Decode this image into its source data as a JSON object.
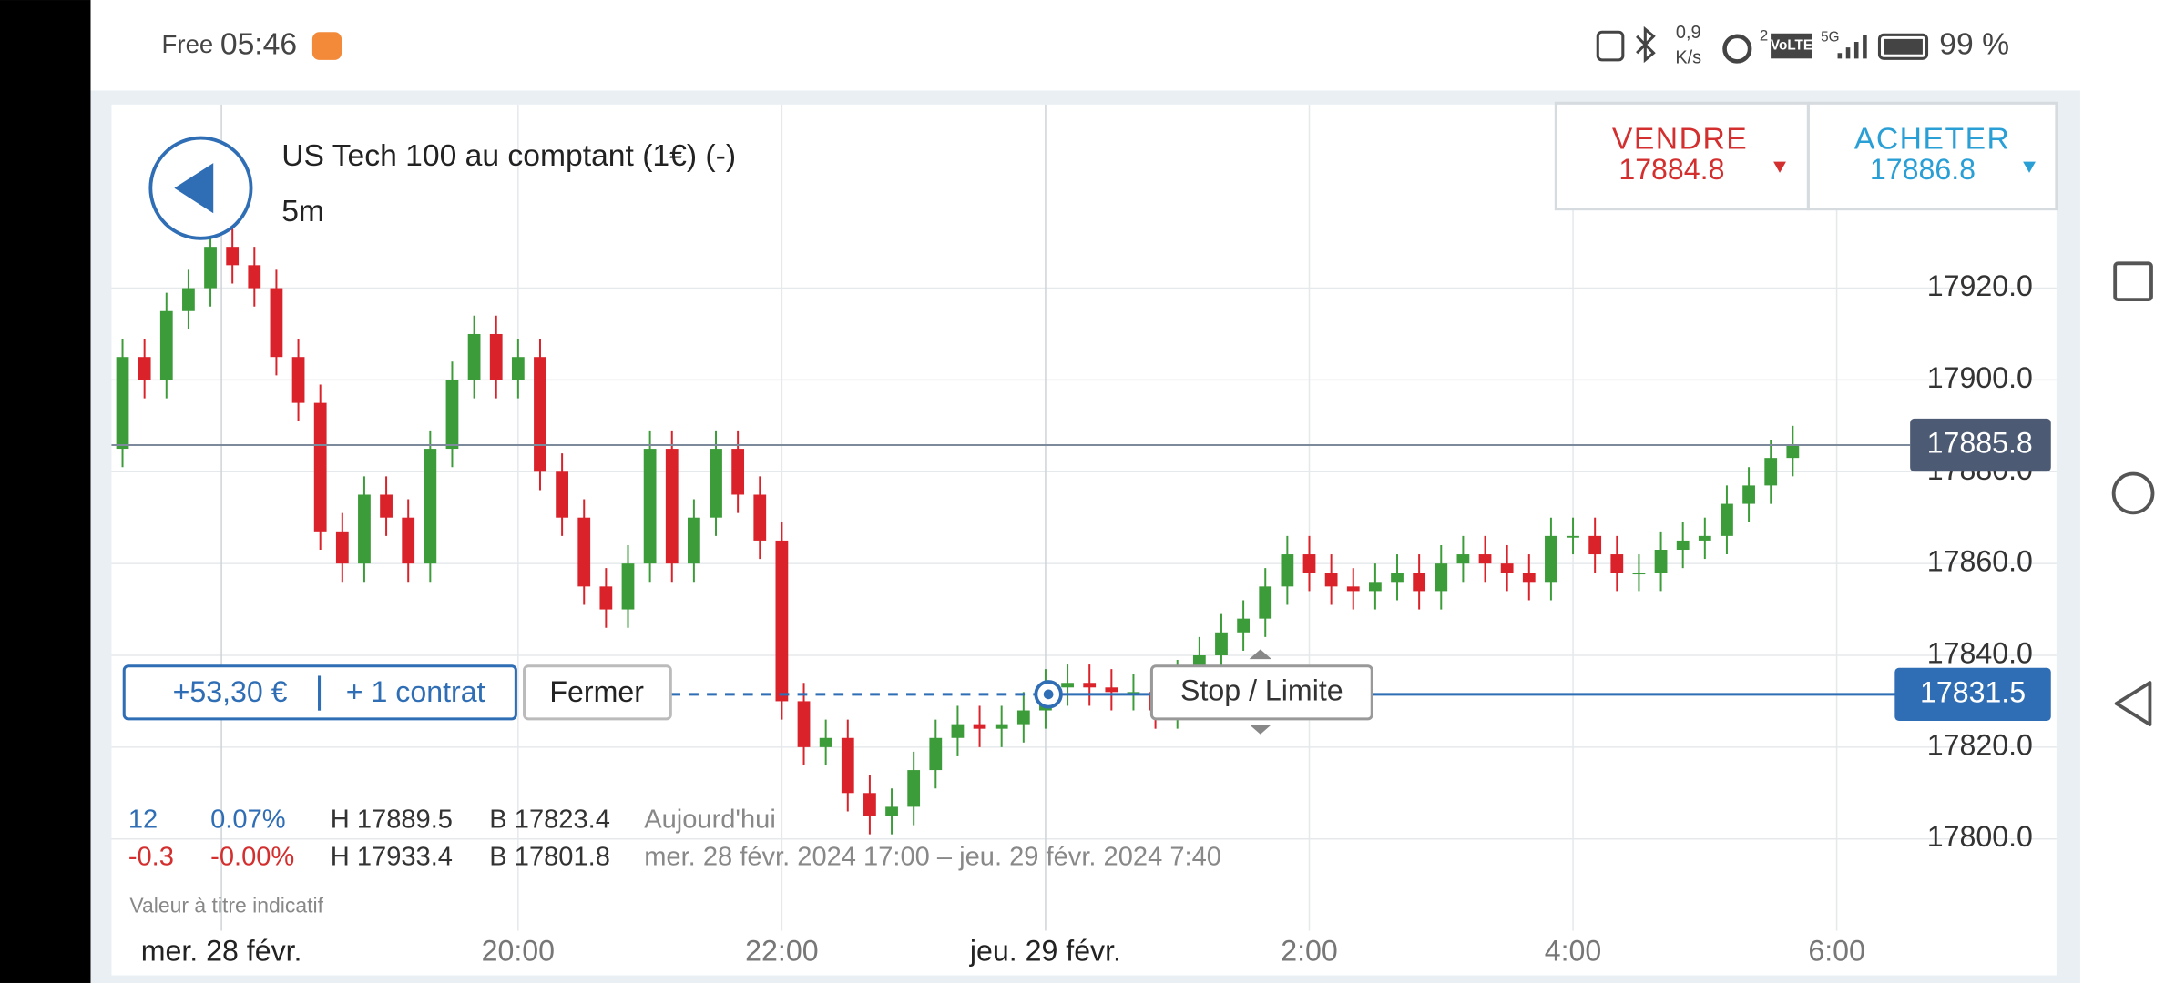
{
  "status_bar": {
    "carrier": "Free",
    "time": "05:46",
    "speed": "0,9",
    "speed_unit": "K/s",
    "signal": "2",
    "volte": "VoLTE",
    "network": "5G",
    "battery": "99 %"
  },
  "header": {
    "title": "US Tech 100 au comptant (1€) (-)",
    "timeframe": "5m"
  },
  "quotes": {
    "sell_label": "VENDRE",
    "sell_price": "17884.8",
    "buy_label": "ACHETER",
    "buy_price": "17886.8"
  },
  "position": {
    "pnl": "+53,30 €",
    "size": "+ 1 contrat",
    "close_button": "Fermer",
    "stop_limit": "Stop / Limite"
  },
  "stats": {
    "today": {
      "change": "12",
      "percent": "0.07%",
      "high": "H 17889.5",
      "low": "B 17823.4",
      "label": "Aujourd'hui"
    },
    "period": {
      "change": "-0.3",
      "percent": "-0.00%",
      "high": "H 17933.4",
      "low": "B 17801.8",
      "label": "mer. 28 févr. 2024 17:00 – jeu. 29 févr. 2024 7:40"
    }
  },
  "disclaimer": "Valeur à titre indicatif",
  "chart_data": {
    "type": "candlestick",
    "up_color": "#3d9c3a",
    "down_color": "#d9222a",
    "grid": true,
    "x": [
      0,
      10,
      20,
      30,
      40,
      50,
      60,
      70,
      80,
      90,
      100,
      110,
      120,
      130,
      140,
      150,
      160,
      170,
      180,
      190,
      200,
      210,
      220,
      230,
      240,
      250,
      260,
      270,
      280,
      290,
      300,
      310,
      320,
      330,
      340,
      350,
      360,
      370,
      380,
      390,
      400,
      410,
      420,
      430,
      440,
      450,
      460,
      470,
      480,
      490,
      500,
      510,
      520,
      530,
      540,
      550,
      560,
      570,
      580,
      590,
      600,
      610,
      620,
      630,
      640,
      650,
      660,
      670,
      680,
      690,
      700,
      710,
      720,
      730,
      740,
      750,
      760
    ],
    "open": [
      17885,
      17905,
      17900,
      17915,
      17920,
      17929,
      17925,
      17920,
      17905,
      17895,
      17867,
      17860,
      17875,
      17870,
      17860,
      17885,
      17900,
      17910,
      17900,
      17905,
      17880,
      17870,
      17855,
      17850,
      17860,
      17885,
      17860,
      17870,
      17885,
      17875,
      17865,
      17830,
      17820,
      17822,
      17810,
      17805,
      17807,
      17815,
      17822,
      17825,
      17824,
      17825,
      17828,
      17833,
      17834,
      17833,
      17832,
      17832,
      17828,
      17835,
      17840,
      17845,
      17848,
      17855,
      17862,
      17858,
      17855,
      17854,
      17856,
      17858,
      17854,
      17860,
      17862,
      17860,
      17858,
      17856,
      17866,
      17866,
      17862,
      17858,
      17858,
      17863,
      17865,
      17866,
      17873,
      17877,
      17883
    ],
    "high": [
      17909,
      17909,
      17919,
      17924,
      17933,
      17933,
      17929,
      17924,
      17909,
      17899,
      17871,
      17879,
      17879,
      17874,
      17889,
      17904,
      17914,
      17914,
      17909,
      17909,
      17884,
      17874,
      17859,
      17864,
      17889,
      17889,
      17874,
      17889,
      17889,
      17879,
      17869,
      17834,
      17826,
      17826,
      17814,
      17811,
      17819,
      17826,
      17829,
      17829,
      17829,
      17832,
      17837,
      17838,
      17838,
      17837,
      17836,
      17836,
      17839,
      17844,
      17849,
      17852,
      17859,
      17866,
      17866,
      17862,
      17859,
      17860,
      17862,
      17862,
      17864,
      17866,
      17866,
      17864,
      17862,
      17870,
      17870,
      17870,
      17866,
      17862,
      17867,
      17869,
      17870,
      17877,
      17881,
      17887,
      17890
    ],
    "low": [
      17881,
      17896,
      17896,
      17911,
      17916,
      17921,
      17916,
      17901,
      17891,
      17863,
      17856,
      17856,
      17866,
      17856,
      17856,
      17881,
      17896,
      17896,
      17896,
      17876,
      17866,
      17851,
      17846,
      17846,
      17856,
      17856,
      17856,
      17866,
      17871,
      17861,
      17826,
      17816,
      17816,
      17806,
      17801,
      17801,
      17803,
      17811,
      17818,
      17820,
      17820,
      17821,
      17824,
      17829,
      17829,
      17828,
      17828,
      17824,
      17824,
      17831,
      17836,
      17841,
      17844,
      17851,
      17854,
      17851,
      17850,
      17850,
      17852,
      17850,
      17850,
      17856,
      17856,
      17854,
      17852,
      17852,
      17862,
      17858,
      17854,
      17854,
      17854,
      17859,
      17861,
      17862,
      17869,
      17873,
      17879
    ],
    "close": [
      17905,
      17900,
      17915,
      17920,
      17929,
      17925,
      17920,
      17905,
      17895,
      17867,
      17860,
      17875,
      17870,
      17860,
      17885,
      17900,
      17910,
      17900,
      17905,
      17880,
      17870,
      17855,
      17850,
      17860,
      17885,
      17860,
      17870,
      17885,
      17875,
      17865,
      17830,
      17820,
      17822,
      17810,
      17805,
      17807,
      17815,
      17822,
      17825,
      17824,
      17825,
      17828,
      17833,
      17834,
      17833,
      17832,
      17832,
      17828,
      17835,
      17840,
      17845,
      17848,
      17855,
      17862,
      17858,
      17855,
      17854,
      17856,
      17858,
      17854,
      17860,
      17862,
      17860,
      17858,
      17856,
      17866,
      17866,
      17862,
      17858,
      17858,
      17863,
      17865,
      17866,
      17873,
      17877,
      17883,
      17886
    ],
    "xlim": [
      -5,
      880
    ],
    "ylim": [
      17780,
      17960
    ],
    "xticks": [
      {
        "value": 45,
        "label": "mer. 28 févr."
      },
      {
        "value": 180,
        "label": "20:00"
      },
      {
        "value": 300,
        "label": "22:00"
      },
      {
        "value": 420,
        "label": "jeu. 29 févr."
      },
      {
        "value": 540,
        "label": "2:00"
      },
      {
        "value": 660,
        "label": "4:00"
      },
      {
        "value": 780,
        "label": "6:00"
      }
    ],
    "yticks": [
      {
        "value": 17800,
        "label": "17800.0"
      },
      {
        "value": 17820,
        "label": "17820.0"
      },
      {
        "value": 17840,
        "label": "17840.0"
      },
      {
        "value": 17860,
        "label": "17860.0"
      },
      {
        "value": 17880,
        "label": "17880.0"
      },
      {
        "value": 17900,
        "label": "17900.0"
      },
      {
        "value": 17920,
        "label": "17920.0"
      }
    ],
    "current_price": 17885.8,
    "position_price": 17831.5
  }
}
